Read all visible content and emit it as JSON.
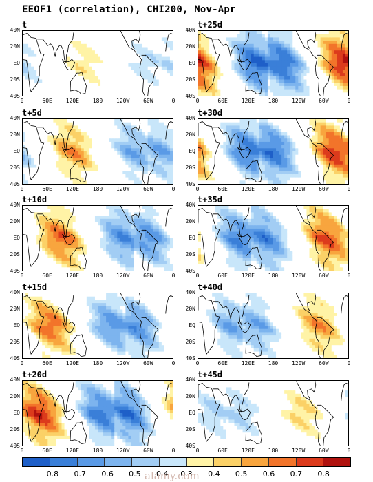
{
  "title": "EEOF1 (correlation), CHI200, Nov-Apr",
  "lat_labels": [
    "40N",
    "20N",
    "EQ",
    "20S",
    "40S"
  ],
  "lon_labels": [
    "0",
    "60E",
    "120E",
    "180",
    "120W",
    "60W",
    "0"
  ],
  "panels": [
    {
      "label": "t",
      "peak_lon": 150,
      "amp": 0.4
    },
    {
      "label": "t+5d",
      "peak_lon": 120,
      "amp": 0.6
    },
    {
      "label": "t+10d",
      "peak_lon": 90,
      "amp": 0.7
    },
    {
      "label": "t+15d",
      "peak_lon": 65,
      "amp": 0.7
    },
    {
      "label": "t+20d",
      "peak_lon": 42,
      "amp": 0.8
    },
    {
      "label": "t+25d",
      "peak_lon": -10,
      "amp": 0.85
    },
    {
      "label": "t+30d",
      "peak_lon": -30,
      "amp": 0.8
    },
    {
      "label": "t+35d",
      "peak_lon": -50,
      "amp": 0.75
    },
    {
      "label": "t+40d",
      "peak_lon": -70,
      "amp": 0.6
    },
    {
      "label": "t+45d",
      "peak_lon": -110,
      "amp": 0.45
    }
  ],
  "colorbar": {
    "labels": [
      "−0.8",
      "−0.7",
      "−0.6",
      "−0.5",
      "−0.4",
      "0.3",
      "0.4",
      "0.5",
      "0.6",
      "0.7",
      "0.8"
    ],
    "colors": [
      "#1e5fc8",
      "#3a7fd8",
      "#5a9ae6",
      "#7db4ee",
      "#a2cdf4",
      "#c8e6fa",
      "#fff3a6",
      "#fbd167",
      "#f8a53e",
      "#f2742a",
      "#dc3b1c",
      "#b0120e"
    ]
  },
  "watermark": "alamy.com"
}
